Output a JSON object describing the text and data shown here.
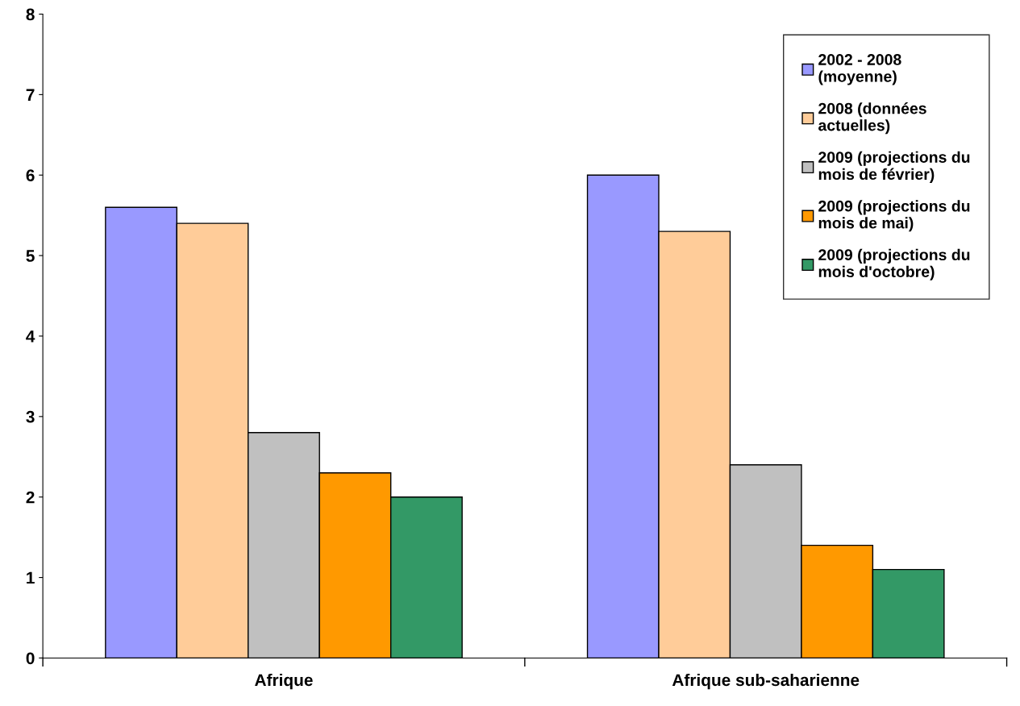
{
  "chart_data": {
    "type": "bar",
    "categories": [
      "Afrique",
      "Afrique sub-saharienne"
    ],
    "series": [
      {
        "name": "2002 - 2008\n(moyenne)",
        "color": "#9999ff",
        "values": [
          5.6,
          6.0
        ]
      },
      {
        "name": "2008 (données\nactuelles)",
        "color": "#ffcc99",
        "values": [
          5.4,
          5.3
        ]
      },
      {
        "name": "2009 (projections du\nmois de février)",
        "color": "#c0c0c0",
        "values": [
          2.8,
          2.4
        ]
      },
      {
        "name": "2009 (projections du\nmois de mai)",
        "color": "#ff9900",
        "values": [
          2.3,
          1.4
        ]
      },
      {
        "name": "2009 (projections du\nmois d'octobre)",
        "color": "#339966",
        "values": [
          2.0,
          1.1
        ]
      }
    ],
    "ylim": [
      0,
      8
    ],
    "yticks": [
      0,
      1,
      2,
      3,
      4,
      5,
      6,
      7,
      8
    ],
    "grid": false,
    "legend": "top right"
  }
}
